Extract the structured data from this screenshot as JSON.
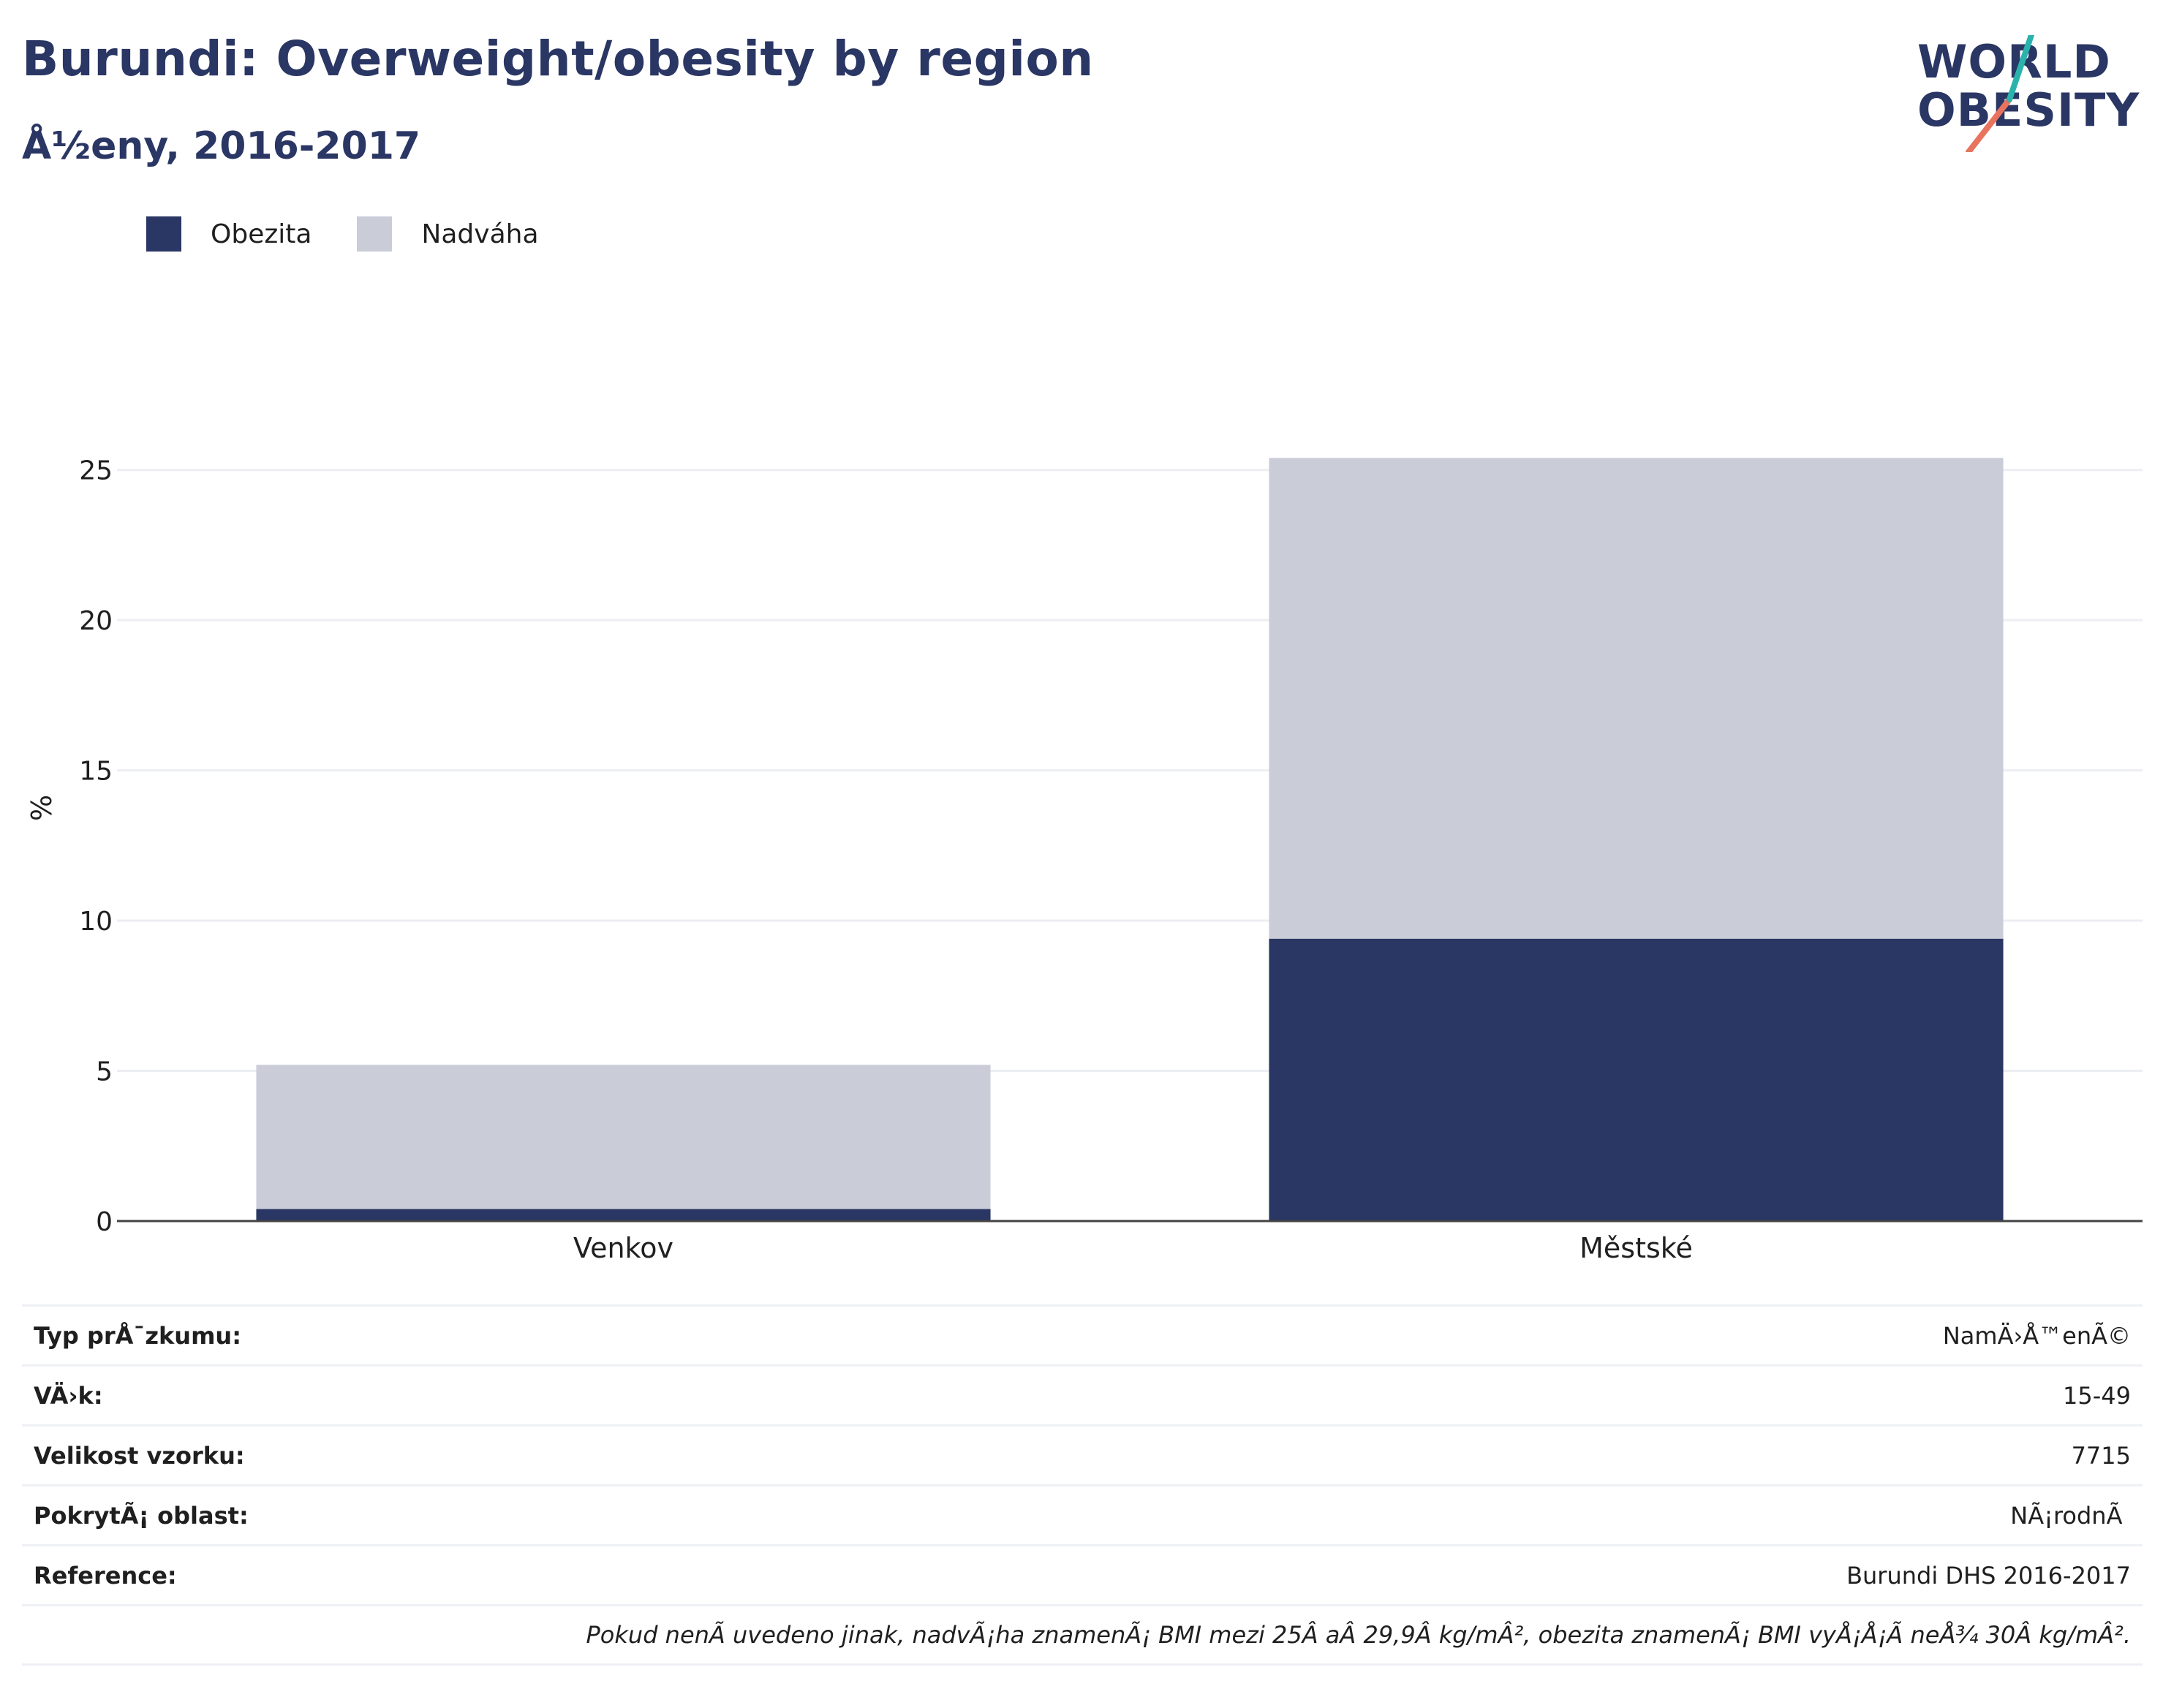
{
  "title": "Burundi: Overweight/obesity by region",
  "subtitle": "Å½eny, 2016-2017",
  "logo": {
    "line1": "WORLD",
    "line2": "OBESITY"
  },
  "colors": {
    "obesity": "#2a3663",
    "overweight": "#cacdd8",
    "title": "#2a3663",
    "logo_teal": "#2ab3ac",
    "logo_coral": "#e8735e"
  },
  "legend": [
    {
      "label": "Obezita",
      "color": "#2a3663"
    },
    {
      "label": "Nadváha",
      "color": "#cacdd8"
    }
  ],
  "chart_data": {
    "type": "bar",
    "stacked": true,
    "categories": [
      "Venkov",
      "Městské"
    ],
    "series": [
      {
        "name": "Obezita",
        "values": [
          0.4,
          9.4
        ]
      },
      {
        "name": "Nadváha",
        "values": [
          4.8,
          16.0
        ]
      }
    ],
    "ylabel": "%",
    "ylim": [
      0,
      27.5
    ],
    "yticks": [
      0,
      5,
      10,
      15,
      20,
      25
    ],
    "grid": true,
    "legend_position": "top-left"
  },
  "info": [
    {
      "key": "Typ prÅ¯zkumu:",
      "value": "NamÄ›Å™enÃ©"
    },
    {
      "key": "VÄ›k:",
      "value": "15-49"
    },
    {
      "key": "Velikost vzorku:",
      "value": "7715"
    },
    {
      "key": "PokrytÃ¡ oblast:",
      "value": "NÃ¡rodnÃ­"
    },
    {
      "key": "Reference:",
      "value": "Burundi DHS 2016-2017"
    }
  ],
  "note": "Pokud nenÃ­ uvedeno jinak, nadvÃ¡ha znamenÃ¡ BMI mezi 25Â aÂ 29,9Â kg/mÂ², obezita znamenÃ¡ BMI vyÅ¡Å¡Ã­ neÅ¾ 30Â kg/mÂ²."
}
